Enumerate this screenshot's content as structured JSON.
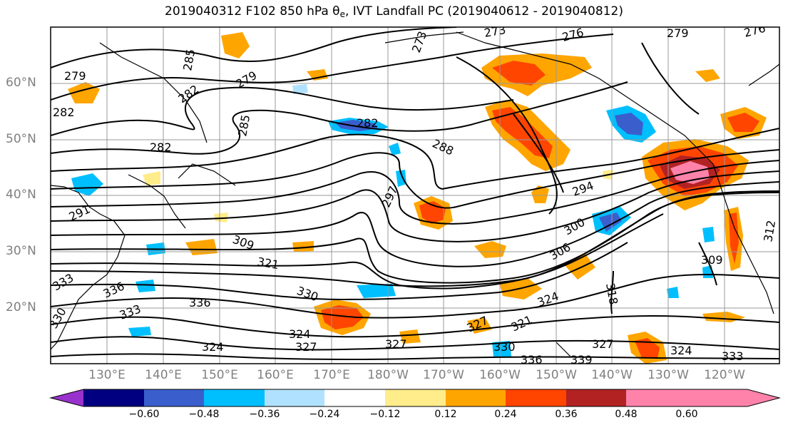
{
  "title": {
    "pre": "2019040312 F102 850 hPa θ",
    "sub": "e",
    "post": ", IVT Landfall PC (2019040612 - 2019040812)"
  },
  "map": {
    "lat_labels": [
      "60°N",
      "50°N",
      "40°N",
      "30°N",
      "20°N"
    ],
    "lon_labels": [
      "130°E",
      "140°E",
      "150°E",
      "160°E",
      "170°E",
      "180°W",
      "170°W",
      "160°W",
      "150°W",
      "140°W",
      "130°W",
      "120°W"
    ],
    "label_color": "#808080",
    "contour_labels": [
      "279",
      "282",
      "285",
      "282",
      "282",
      "279",
      "282",
      "285",
      "273",
      "273",
      "276",
      "279",
      "276",
      "288",
      "294",
      "297",
      "291",
      "300",
      "306",
      "309",
      "309",
      "312",
      "321",
      "330",
      "336",
      "336",
      "333",
      "333",
      "330",
      "324",
      "327",
      "327",
      "327",
      "324",
      "318",
      "324",
      "327",
      "324",
      "321",
      "330",
      "336",
      "339",
      "333"
    ]
  },
  "colorbar": {
    "colors": [
      "#9932cc",
      "#000080",
      "#3a5fcd",
      "#00bfff",
      "#b0e2ff",
      "#ffffff",
      "#ffec8b",
      "#ffa500",
      "#ff4500",
      "#b22222",
      "#ff82ab"
    ],
    "ticks": [
      "−0.60",
      "−0.48",
      "−0.36",
      "−0.24",
      "−0.12",
      "0.12",
      "0.24",
      "0.36",
      "0.48",
      "0.60"
    ]
  }
}
